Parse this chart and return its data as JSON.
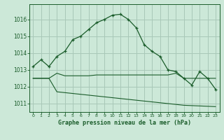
{
  "background_color": "#cce8d8",
  "grid_color": "#a8c8b8",
  "line_color": "#1a5c2a",
  "title": "Graphe pression niveau de la mer (hPa)",
  "xlim": [
    -0.5,
    23.5
  ],
  "ylim": [
    1010.5,
    1016.9
  ],
  "yticks": [
    1011,
    1012,
    1013,
    1014,
    1015,
    1016
  ],
  "xticks": [
    0,
    1,
    2,
    3,
    4,
    5,
    6,
    7,
    8,
    9,
    10,
    11,
    12,
    13,
    14,
    15,
    16,
    17,
    18,
    19,
    20,
    21,
    22,
    23
  ],
  "series_main": [
    1013.2,
    1013.6,
    1013.2,
    1013.8,
    1014.1,
    1014.8,
    1015.0,
    1015.4,
    1015.8,
    1016.0,
    1016.25,
    1016.3,
    1016.0,
    1015.5,
    1014.5,
    1014.1,
    1013.8,
    1013.0,
    1012.9,
    1012.5,
    1012.1,
    1012.9,
    1012.5,
    1011.85
  ],
  "series_flat1": [
    1012.5,
    1012.5,
    1012.5,
    1012.8,
    1012.65,
    1012.65,
    1012.65,
    1012.65,
    1012.7,
    1012.7,
    1012.7,
    1012.7,
    1012.7,
    1012.7,
    1012.7,
    1012.7,
    1012.7,
    1012.7,
    1012.8,
    1012.5,
    1012.5,
    1012.5,
    1012.5,
    1012.5
  ],
  "series_flat2": [
    1012.5,
    1012.5,
    1012.5,
    1011.7,
    1011.65,
    1011.6,
    1011.55,
    1011.5,
    1011.45,
    1011.4,
    1011.35,
    1011.3,
    1011.25,
    1011.2,
    1011.15,
    1011.1,
    1011.05,
    1011.0,
    1010.95,
    1010.9,
    1010.88,
    1010.86,
    1010.84,
    1010.82
  ]
}
